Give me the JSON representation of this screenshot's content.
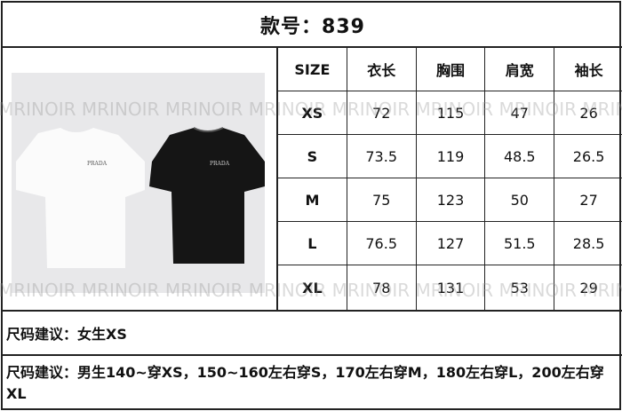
{
  "title": "款号：839",
  "watermark": "MRINOIR MRINOIR MRINOIR MRINOIR MRINOIR MRINOIR MRINOIR MRINOIR MRINOIR",
  "product_image": {
    "items": [
      "white-tshirt",
      "black-tshirt"
    ],
    "colors": [
      "#ffffff",
      "#111111"
    ]
  },
  "table": {
    "headers": [
      "SIZE",
      "衣长",
      "胸围",
      "肩宽",
      "袖长"
    ],
    "rows": [
      [
        "XS",
        "72",
        "115",
        "47",
        "26"
      ],
      [
        "S",
        "73.5",
        "119",
        "48.5",
        "26.5"
      ],
      [
        "M",
        "75",
        "123",
        "50",
        "27"
      ],
      [
        "L",
        "76.5",
        "127",
        "51.5",
        "28.5"
      ],
      [
        "XL",
        "78",
        "131",
        "53",
        "29"
      ]
    ]
  },
  "notes": {
    "women": "尺码建议：女生XS",
    "men": "尺码建议：男生140~穿XS，150~160左右穿S，170左右穿M，180左右穿L，200左右穿XL"
  }
}
